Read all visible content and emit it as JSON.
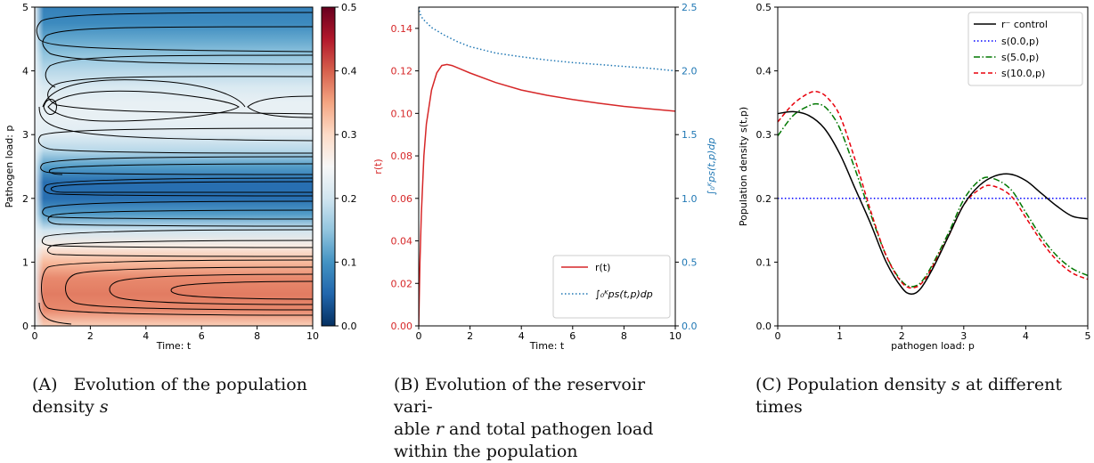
{
  "panels": {
    "a": {
      "caption": {
        "label": "(A)",
        "text": "Evolution of the population density",
        "symbol": "s"
      },
      "chart_data": {
        "type": "heatmap",
        "xlabel": "Time: t",
        "ylabel": "Pathogen load: p",
        "xlim": [
          0,
          10
        ],
        "ylim": [
          0,
          5
        ],
        "x_ticks": [
          0,
          2,
          4,
          6,
          8,
          10
        ],
        "y_ticks": [
          0,
          1,
          2,
          3,
          4,
          5
        ],
        "colorbar": {
          "min": 0.0,
          "max": 0.5,
          "ticks": [
            "0.0",
            "0.1",
            "0.2",
            "0.3",
            "0.4",
            "0.5"
          ],
          "colormap": "RdBu_r"
        },
        "contours": "black",
        "density_profile_p": [
          0.0,
          0.25,
          0.5,
          0.75,
          1.0,
          1.25,
          1.5,
          1.75,
          2.0,
          2.25,
          2.5,
          2.75,
          3.0,
          3.25,
          3.5,
          3.75,
          4.0,
          4.25,
          4.5,
          4.75,
          5.0
        ],
        "density_profile_s_at_t10": [
          0.31,
          0.37,
          0.38,
          0.37,
          0.33,
          0.27,
          0.2,
          0.11,
          0.06,
          0.06,
          0.11,
          0.18,
          0.22,
          0.23,
          0.23,
          0.21,
          0.18,
          0.15,
          0.12,
          0.09,
          0.08
        ]
      }
    },
    "b": {
      "caption": {
        "label": "(B)",
        "text_1": "Evolution of the reservoir vari-",
        "text_2a": "able",
        "symbol": "r",
        "text_2b": "and total pathogen load",
        "text_3": "within the population"
      },
      "chart_data": {
        "type": "line",
        "xlabel": "Time: t",
        "ylabel_left": "r(t)",
        "ylabel_right": "∫₀ᴷps(t,p)dp",
        "xlim": [
          0,
          10
        ],
        "ylim_left": [
          0.0,
          0.15
        ],
        "ylim_right": [
          0.0,
          2.5
        ],
        "x_ticks": [
          0,
          2,
          4,
          6,
          8,
          10
        ],
        "y_ticks_left": [
          "0.00",
          "0.02",
          "0.04",
          "0.06",
          "0.08",
          "0.10",
          "0.12",
          "0.14"
        ],
        "y_ticks_right": [
          "0.0",
          "0.5",
          "1.0",
          "1.5",
          "2.0",
          "2.5"
        ],
        "legend_position": "lower-right",
        "series": [
          {
            "name": "r(t)",
            "axis": "left",
            "color": "#d62728",
            "style": "solid",
            "x": [
              0,
              0.05,
              0.1,
              0.2,
              0.3,
              0.5,
              0.7,
              0.9,
              1.1,
              1.3,
              1.6,
              2,
              3,
              4,
              5,
              6,
              7,
              8,
              9,
              10
            ],
            "y": [
              0.0,
              0.03,
              0.052,
              0.08,
              0.095,
              0.111,
              0.119,
              0.1225,
              0.123,
              0.1225,
              0.121,
              0.119,
              0.1145,
              0.111,
              0.1085,
              0.1065,
              0.1048,
              0.1033,
              0.1021,
              0.101
            ]
          },
          {
            "name": "∫₀ᴷps(t,p)dp",
            "axis": "right",
            "color": "#1f77b4",
            "style": "dotted",
            "x": [
              0,
              0.05,
              0.15,
              0.3,
              0.5,
              1,
              1.5,
              2,
              3,
              4,
              5,
              6,
              7,
              8,
              9,
              10
            ],
            "y": [
              2.5,
              2.45,
              2.41,
              2.38,
              2.34,
              2.28,
              2.23,
              2.19,
              2.14,
              2.11,
              2.085,
              2.065,
              2.05,
              2.035,
              2.02,
              2.0
            ]
          }
        ]
      }
    },
    "c": {
      "caption": {
        "label": "(C)",
        "text_1a": "Population density",
        "symbol": "s",
        "text_1b": "at different",
        "text_2": "times"
      },
      "chart_data": {
        "type": "line",
        "xlabel": "pathogen load: p",
        "ylabel": "Population density s(t,p)",
        "xlim": [
          0,
          5
        ],
        "ylim": [
          0.0,
          0.5
        ],
        "x_ticks": [
          0,
          1,
          2,
          3,
          4,
          5
        ],
        "y_ticks": [
          "0.0",
          "0.1",
          "0.2",
          "0.3",
          "0.4",
          "0.5"
        ],
        "legend_position": "top-right",
        "series": [
          {
            "name": "r⁻ control",
            "color": "#000000",
            "style": "solid",
            "x": [
              0,
              0.25,
              0.5,
              0.75,
              1.0,
              1.25,
              1.5,
              1.75,
              2.0,
              2.15,
              2.3,
              2.5,
              2.75,
              3.0,
              3.25,
              3.5,
              3.75,
              4.0,
              4.25,
              4.5,
              4.75,
              5.0
            ],
            "y": [
              0.333,
              0.336,
              0.33,
              0.31,
              0.27,
              0.215,
              0.16,
              0.1,
              0.06,
              0.05,
              0.058,
              0.09,
              0.14,
              0.19,
              0.22,
              0.235,
              0.238,
              0.228,
              0.208,
              0.188,
              0.172,
              0.168
            ]
          },
          {
            "name": "s(0.0,p)",
            "color": "#0000ff",
            "style": "dotted",
            "x": [
              0,
              5
            ],
            "y": [
              0.2,
              0.2
            ]
          },
          {
            "name": "s(5.0,p)",
            "color": "#007700",
            "style": "dashdot",
            "x": [
              0,
              0.25,
              0.5,
              0.65,
              0.8,
              1.0,
              1.25,
              1.5,
              1.75,
              2.0,
              2.2,
              2.4,
              2.75,
              3.0,
              3.25,
              3.45,
              3.75,
              4.0,
              4.25,
              4.5,
              4.75,
              5.0
            ],
            "y": [
              0.298,
              0.33,
              0.345,
              0.348,
              0.34,
              0.31,
              0.245,
              0.175,
              0.11,
              0.07,
              0.062,
              0.08,
              0.145,
              0.198,
              0.228,
              0.232,
              0.215,
              0.178,
              0.14,
              0.11,
              0.09,
              0.079
            ]
          },
          {
            "name": "s(10.0,p)",
            "color": "#e8000b",
            "style": "dashed",
            "x": [
              0,
              0.25,
              0.5,
              0.65,
              0.8,
              1.0,
              1.25,
              1.5,
              1.75,
              2.0,
              2.2,
              2.4,
              2.75,
              3.0,
              3.25,
              3.45,
              3.75,
              4.0,
              4.25,
              4.5,
              4.75,
              5.0
            ],
            "y": [
              0.32,
              0.348,
              0.365,
              0.367,
              0.358,
              0.33,
              0.26,
              0.18,
              0.11,
              0.068,
              0.06,
              0.077,
              0.14,
              0.19,
              0.214,
              0.22,
              0.205,
              0.17,
              0.133,
              0.103,
              0.083,
              0.073
            ]
          }
        ]
      }
    }
  }
}
